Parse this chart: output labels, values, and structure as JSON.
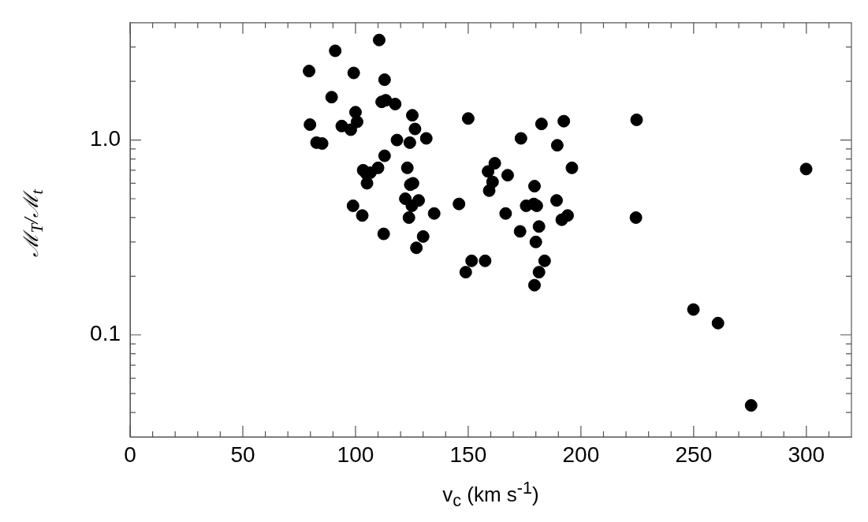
{
  "chart_data": {
    "type": "scatter",
    "xlabel": "v$_{c}$ (km s$^{-1}$)",
    "ylabel": "ℳ$_{T}$/ℳ$_{t}$",
    "log": "y",
    "marker": "circle",
    "grid": false,
    "legend": false,
    "xlim": [
      0,
      320
    ],
    "ylim": [
      0.03,
      4
    ],
    "xticks": [
      0,
      {
        "value": 10,
        "label": null
      },
      {
        "value": 20,
        "label": null
      },
      {
        "value": 30,
        "label": null
      },
      {
        "value": 40,
        "label": null
      },
      50,
      {
        "value": 60,
        "label": null
      },
      {
        "value": 70,
        "label": null
      },
      {
        "value": 80,
        "label": null
      },
      {
        "value": 90,
        "label": null
      },
      100,
      {
        "value": 110,
        "label": null
      },
      {
        "value": 120,
        "label": null
      },
      {
        "value": 130,
        "label": null
      },
      {
        "value": 140,
        "label": null
      },
      150,
      {
        "value": 160,
        "label": null
      },
      {
        "value": 170,
        "label": null
      },
      {
        "value": 180,
        "label": null
      },
      {
        "value": 190,
        "label": null
      },
      200,
      {
        "value": 210,
        "label": null
      },
      {
        "value": 220,
        "label": null
      },
      {
        "value": 230,
        "label": null
      },
      {
        "value": 240,
        "label": null
      },
      250,
      {
        "value": 260,
        "label": null
      },
      {
        "value": 270,
        "label": null
      },
      {
        "value": 280,
        "label": null
      },
      {
        "value": 290,
        "label": null
      },
      300,
      {
        "value": 310,
        "label": null
      }
    ],
    "yticks": [
      {
        "value": 0.04,
        "label": null
      },
      {
        "value": 0.05,
        "label": null
      },
      {
        "value": 0.06,
        "label": null
      },
      {
        "value": 0.07,
        "label": null
      },
      {
        "value": 0.08,
        "label": null
      },
      {
        "value": 0.09,
        "label": null
      },
      0.1,
      {
        "value": 0.2,
        "label": null
      },
      {
        "value": 0.3,
        "label": null
      },
      {
        "value": 0.4,
        "label": null
      },
      {
        "value": 0.5,
        "label": null
      },
      {
        "value": 0.6,
        "label": null
      },
      {
        "value": 0.7,
        "label": null
      },
      {
        "value": 0.8,
        "label": null
      },
      {
        "value": 0.9,
        "label": null
      },
      {
        "value": 1,
        "label": "1.0"
      },
      {
        "value": 2,
        "label": null
      },
      {
        "value": 3,
        "label": null
      }
    ],
    "series": [
      {
        "color": "#000000",
        "x": [
          110.5,
          91,
          79.4,
          99.2,
          112.9,
          89.4,
          111.6,
          113.4,
          117.6,
          100,
          125.2,
          150,
          182.5,
          79.8,
          93.9,
          100.7,
          97.9,
          126.4,
          173.4,
          82.7,
          85.2,
          118.4,
          124.1,
          131.4,
          112.9,
          161.8,
          158.8,
          167.5,
          160.8,
          159.3,
          179.4,
          103.4,
          106.6,
          110,
          104.9,
          105.1,
          123,
          125.5,
          124.3,
          122.1,
          125,
          128,
          123.7,
          134.9,
          98.9,
          103,
          145.9,
          166.6,
          175.7,
          179.1,
          180.4,
          173,
          181.4,
          180,
          183.9,
          112.5,
          130,
          127,
          151.5,
          157.5,
          148.9,
          181.4,
          179.4,
          192.4,
          224.7,
          189.5,
          196,
          189.2,
          194.1,
          191.5,
          224.4,
          299.9,
          249.9,
          260.8,
          275.5
        ],
        "values": [
          3.26,
          2.87,
          2.26,
          2.21,
          2.04,
          1.66,
          1.57,
          1.6,
          1.53,
          1.39,
          1.34,
          1.29,
          1.21,
          1.2,
          1.18,
          1.24,
          1.13,
          1.14,
          1.02,
          0.97,
          0.96,
          1.0,
          0.97,
          1.02,
          0.83,
          0.76,
          0.69,
          0.66,
          0.61,
          0.55,
          0.58,
          0.7,
          0.68,
          0.72,
          0.67,
          0.6,
          0.72,
          0.6,
          0.59,
          0.5,
          0.46,
          0.49,
          0.4,
          0.42,
          0.46,
          0.41,
          0.47,
          0.42,
          0.46,
          0.47,
          0.46,
          0.34,
          0.36,
          0.3,
          0.24,
          0.33,
          0.32,
          0.28,
          0.24,
          0.24,
          0.21,
          0.21,
          0.18,
          1.25,
          1.27,
          0.94,
          0.72,
          0.49,
          0.41,
          0.39,
          0.4,
          0.71,
          0.135,
          0.115,
          0.0435
        ]
      }
    ]
  }
}
